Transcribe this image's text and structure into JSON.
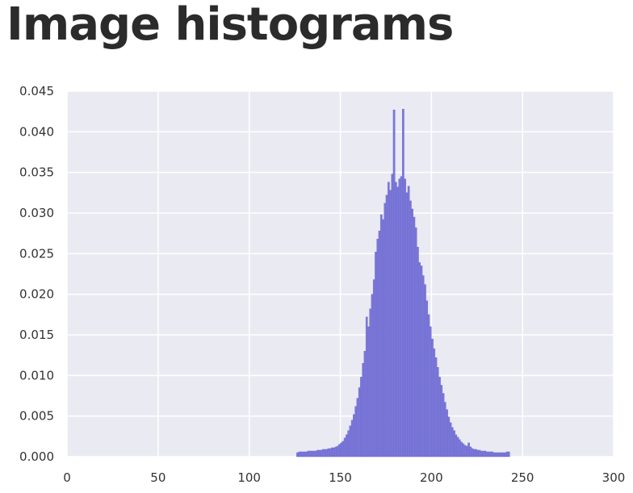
{
  "slide": {
    "title": "Image histograms"
  },
  "colors": {
    "plot_background": "#eaeaf2",
    "grid": "#ffffff",
    "bar_fill": "#7b78d9",
    "bar_edge": "#6a67cc",
    "title_text": "#2b2b2b"
  },
  "chart_data": {
    "type": "bar",
    "title": "",
    "xlabel": "",
    "ylabel": "",
    "xlim": [
      0,
      300
    ],
    "ylim": [
      0,
      0.045
    ],
    "grid": true,
    "x_ticks": [
      0,
      50,
      100,
      150,
      200,
      250,
      300
    ],
    "x_tick_labels": [
      "0",
      "50",
      "100",
      "150",
      "200",
      "250",
      "300"
    ],
    "y_ticks": [
      0.0,
      0.005,
      0.01,
      0.015,
      0.02,
      0.025,
      0.03,
      0.035,
      0.04,
      0.045
    ],
    "y_tick_labels": [
      "0.000",
      "0.005",
      "0.010",
      "0.015",
      "0.020",
      "0.025",
      "0.030",
      "0.035",
      "0.040",
      "0.045"
    ],
    "bin_width": 1,
    "x": [
      126,
      127,
      128,
      129,
      130,
      131,
      132,
      133,
      134,
      135,
      136,
      137,
      138,
      139,
      140,
      141,
      142,
      143,
      144,
      145,
      146,
      147,
      148,
      149,
      150,
      151,
      152,
      153,
      154,
      155,
      156,
      157,
      158,
      159,
      160,
      161,
      162,
      163,
      164,
      165,
      166,
      167,
      168,
      169,
      170,
      171,
      172,
      173,
      174,
      175,
      176,
      177,
      178,
      179,
      180,
      181,
      182,
      183,
      184,
      185,
      186,
      187,
      188,
      189,
      190,
      191,
      192,
      193,
      194,
      195,
      196,
      197,
      198,
      199,
      200,
      201,
      202,
      203,
      204,
      205,
      206,
      207,
      208,
      209,
      210,
      211,
      212,
      213,
      214,
      215,
      216,
      217,
      218,
      219,
      220,
      221,
      222,
      223,
      224,
      225,
      226,
      227,
      228,
      229,
      230,
      231,
      232,
      233,
      234,
      235,
      236,
      237,
      238,
      239,
      240,
      241,
      242
    ],
    "values": [
      0.0005,
      0.0006,
      0.0006,
      0.0006,
      0.0006,
      0.0006,
      0.0007,
      0.0007,
      0.0007,
      0.0007,
      0.0007,
      0.0008,
      0.0008,
      0.0008,
      0.0009,
      0.0009,
      0.0009,
      0.001,
      0.001,
      0.0011,
      0.0011,
      0.0012,
      0.0013,
      0.0015,
      0.0017,
      0.0019,
      0.0023,
      0.0027,
      0.0032,
      0.0038,
      0.0045,
      0.0052,
      0.0062,
      0.0072,
      0.0085,
      0.0098,
      0.0115,
      0.013,
      0.0172,
      0.016,
      0.0182,
      0.02,
      0.0218,
      0.0252,
      0.0268,
      0.0278,
      0.0298,
      0.0292,
      0.0312,
      0.0322,
      0.0338,
      0.0328,
      0.0348,
      0.0427,
      0.0338,
      0.0332,
      0.0342,
      0.0345,
      0.0428,
      0.0342,
      0.0325,
      0.0333,
      0.0315,
      0.0305,
      0.0295,
      0.0282,
      0.0258,
      0.0239,
      0.0235,
      0.0223,
      0.0212,
      0.0192,
      0.0175,
      0.016,
      0.0145,
      0.0133,
      0.0122,
      0.011,
      0.0098,
      0.0088,
      0.0078,
      0.0067,
      0.0058,
      0.0049,
      0.0042,
      0.0036,
      0.0032,
      0.0027,
      0.0024,
      0.0021,
      0.0018,
      0.0016,
      0.0014,
      0.0013,
      0.0017,
      0.0012,
      0.001,
      0.0009,
      0.0009,
      0.0008,
      0.0008,
      0.0007,
      0.0007,
      0.0007,
      0.0006,
      0.0006,
      0.0006,
      0.0006,
      0.0005,
      0.0005,
      0.0005,
      0.0005,
      0.0005,
      0.0005,
      0.0005,
      0.0006,
      0.0006
    ]
  }
}
